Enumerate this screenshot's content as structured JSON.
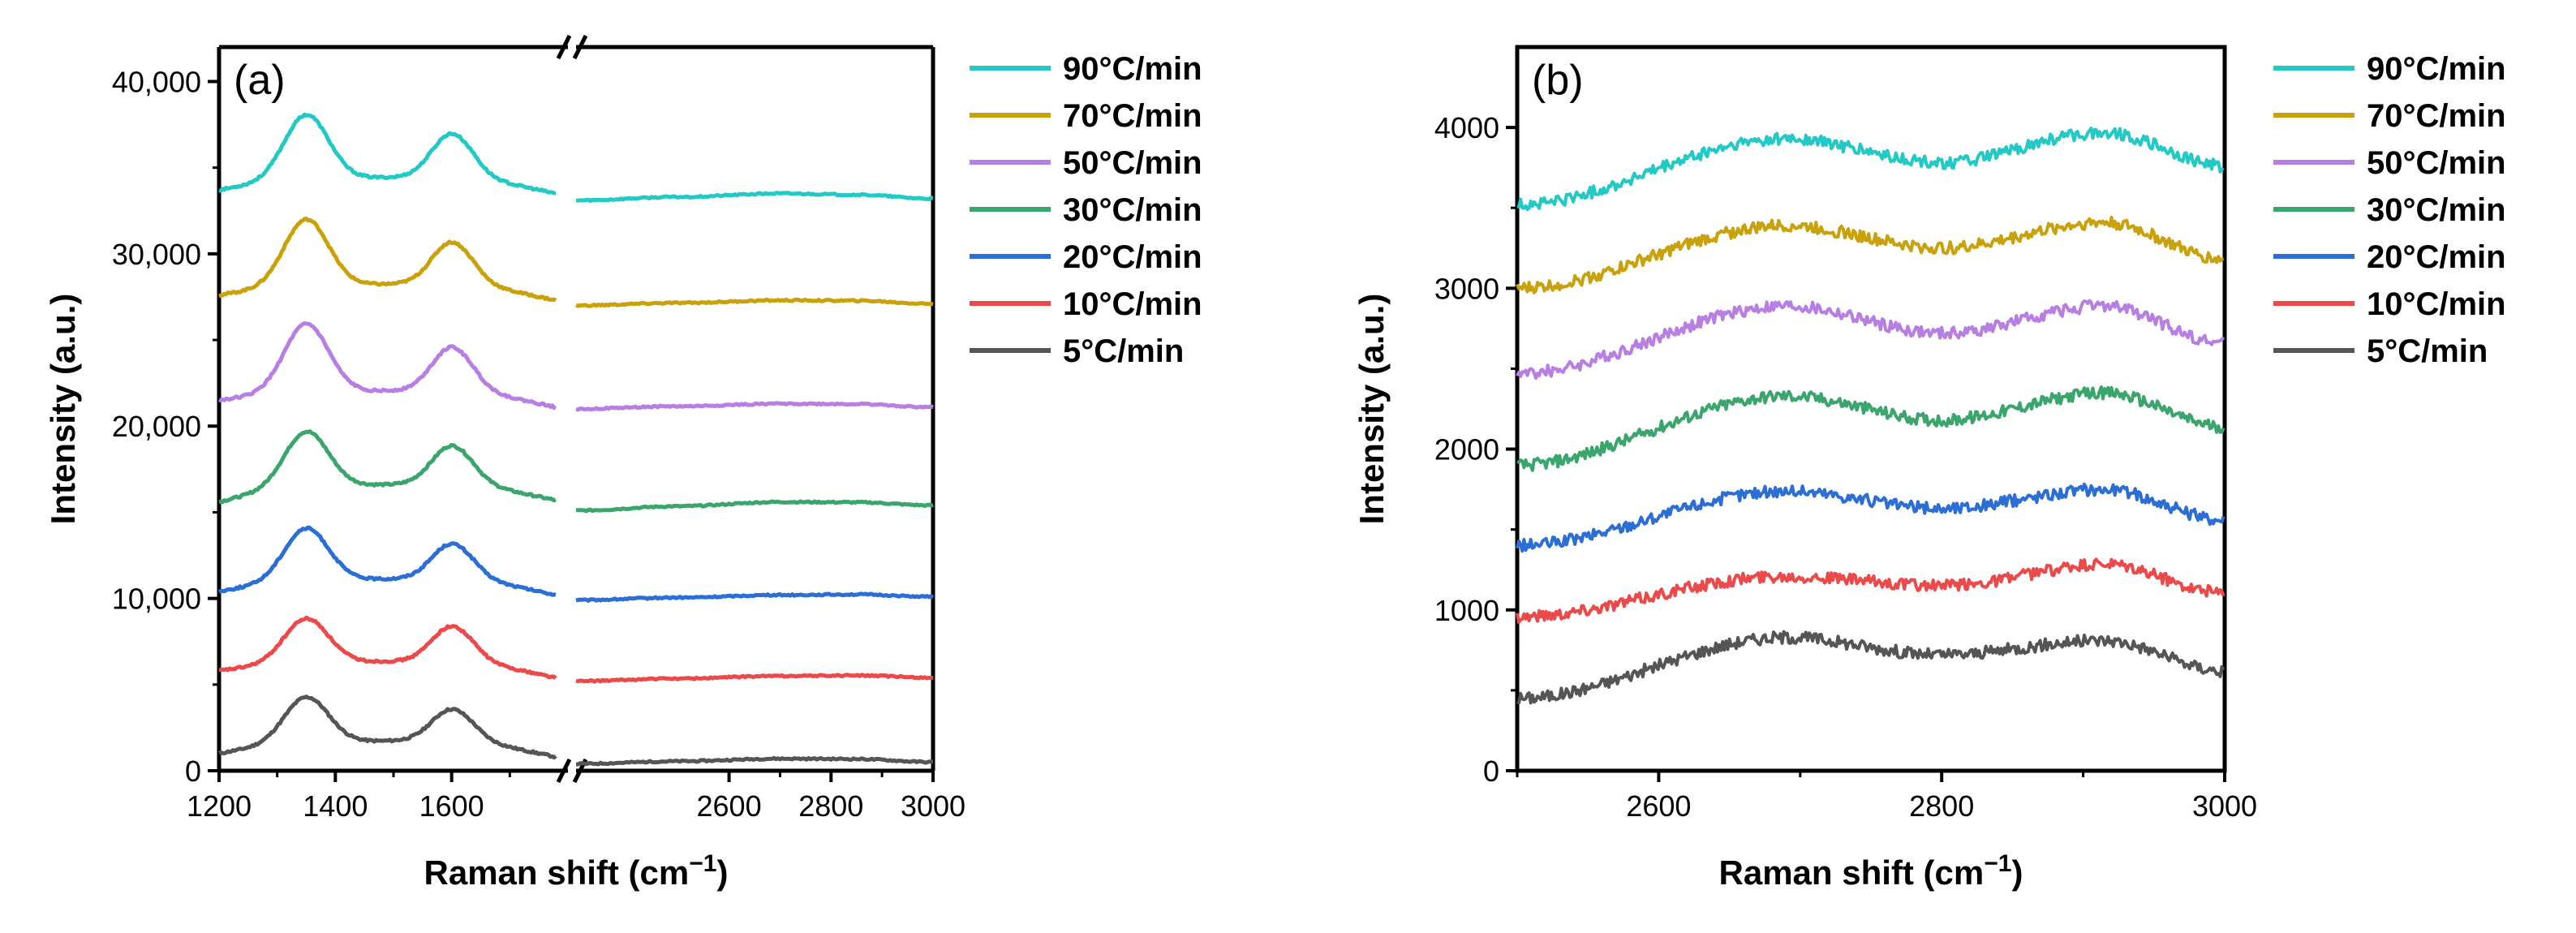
{
  "chart_data": [
    {
      "type": "line",
      "panel": "(a)",
      "xlabel": "Raman shift (cm",
      "xlabel_sup": "−1",
      "xlabel_end": ")",
      "ylabel": "Intensity (a.u.)",
      "xlim": [
        1200,
        3000
      ],
      "axis_break": {
        "from": 1800,
        "to": 2300
      },
      "ylim": [
        0,
        42000
      ],
      "xticks": [
        1200,
        1400,
        1600,
        2600,
        2800,
        3000
      ],
      "xtick_labels": [
        "1200",
        "1400",
        "1600",
        "2600",
        "2800",
        "3000"
      ],
      "yticks": [
        0,
        10000,
        20000,
        30000,
        40000
      ],
      "ytick_labels": [
        "0",
        "10,000",
        "20,000",
        "30,000",
        "40,000"
      ],
      "baseline_low": [
        1000,
        5800,
        10400,
        15600,
        21500,
        27600,
        33700
      ],
      "plateau": [
        1800,
        6400,
        11200,
        16700,
        22100,
        28300,
        34500
      ],
      "d_peak": [
        4500,
        9000,
        14300,
        20000,
        26100,
        32200,
        38300
      ],
      "g_peak": [
        3200,
        8000,
        12800,
        18500,
        24200,
        30300,
        36600
      ],
      "after_break": [
        400,
        5200,
        9900,
        15100,
        21000,
        27000,
        33100
      ],
      "bump_2700": [
        700,
        5500,
        10200,
        15600,
        21300,
        27300,
        33500
      ],
      "end_level": [
        500,
        5400,
        10100,
        15400,
        21100,
        27100,
        33200
      ]
    },
    {
      "type": "line",
      "panel": "(b)",
      "xlabel": "Raman shift (cm",
      "xlabel_sup": "−1",
      "xlabel_end": ")",
      "ylabel": "Intensity (a.u.)",
      "xlim": [
        2500,
        3000
      ],
      "ylim": [
        0,
        4500
      ],
      "xticks": [
        2600,
        2800,
        3000
      ],
      "xtick_labels": [
        "2600",
        "2800",
        "3000"
      ],
      "yticks": [
        0,
        1000,
        2000,
        3000,
        4000
      ],
      "ytick_labels": [
        "0",
        "1000",
        "2000",
        "3000",
        "4000"
      ],
      "start": [
        450,
        960,
        1400,
        1900,
        2470,
        3000,
        3520
      ],
      "peak_2700": [
        830,
        1210,
        1740,
        2330,
        2890,
        3390,
        3930
      ],
      "dip_2800": [
        720,
        1150,
        1630,
        2180,
        2720,
        3250,
        3780
      ],
      "peak_2920": [
        810,
        1280,
        1750,
        2350,
        2890,
        3410,
        3970
      ],
      "end": [
        620,
        1110,
        1560,
        2140,
        2660,
        3180,
        3760
      ]
    }
  ],
  "series": [
    {
      "name": "5°C/min",
      "color": "#555555"
    },
    {
      "name": "10°C/min",
      "color": "#ec4a4a"
    },
    {
      "name": "20°C/min",
      "color": "#2b6ed6"
    },
    {
      "name": "30°C/min",
      "color": "#3aa56c"
    },
    {
      "name": "50°C/min",
      "color": "#b77ee3"
    },
    {
      "name": "70°C/min",
      "color": "#c9a10a"
    },
    {
      "name": "90°C/min",
      "color": "#23c9c5"
    }
  ],
  "legend_order": [
    6,
    5,
    4,
    3,
    2,
    1,
    0
  ],
  "break_mark": "//"
}
